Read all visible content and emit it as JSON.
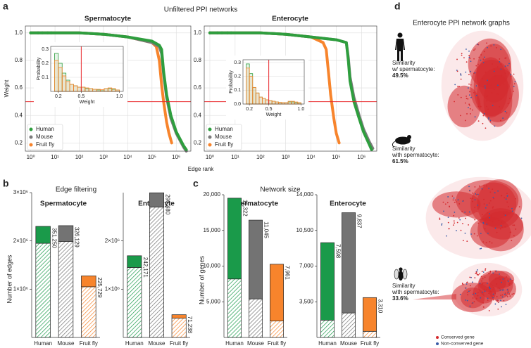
{
  "panels": {
    "a": {
      "letter": "a",
      "title": "Unfiltered PPI networks",
      "xlabel": "Edge rank"
    },
    "b": {
      "letter": "b",
      "title": "Edge filtering"
    },
    "c": {
      "letter": "c",
      "title": "Network size"
    },
    "d": {
      "letter": "d",
      "title": "Enterocyte PPI network graphs",
      "similarity": [
        {
          "lines": [
            "Similarity",
            "w/ spermatocyte:"
          ],
          "value": "49.5%"
        },
        {
          "lines": [
            "Similarity",
            "with spermatocyte:"
          ],
          "value": "61.5%"
        },
        {
          "lines": [
            "Similarity",
            "with spermatocyte:"
          ],
          "value": "33.6%"
        }
      ],
      "legend": [
        {
          "label": "Conserved gene",
          "color": "#d42a2e"
        },
        {
          "label": "Non-conserved gene",
          "color": "#3a5ca8"
        }
      ]
    }
  },
  "chart_data": [
    {
      "type": "line",
      "title": "Spermatocyte",
      "ylabel": "Weight",
      "xscale": "log",
      "grid": true,
      "legend": "lower left",
      "xlim": [
        0.6,
        4000000
      ],
      "ylim": [
        0.14,
        1.05
      ],
      "xticks": [
        {
          "value": 1,
          "label": "10⁰"
        },
        {
          "value": 10,
          "label": "10¹"
        },
        {
          "value": 100,
          "label": "10²"
        },
        {
          "value": 1000,
          "label": "10³"
        },
        {
          "value": 10000,
          "label": "10⁴"
        },
        {
          "value": 100000,
          "label": "10⁵"
        },
        {
          "value": 1000000,
          "label": "10⁶"
        }
      ],
      "yticks": [
        0.2,
        0.4,
        0.6,
        0.8,
        {
          "value": 1,
          "label": "1.0"
        }
      ],
      "reference_line": {
        "y": 0.5,
        "color": "#e8262a"
      },
      "series": [
        {
          "name": "Human",
          "color": "#2e9e3e",
          "x": [
            1,
            2,
            3,
            5,
            7,
            10,
            100,
            1000,
            10000,
            100000,
            200000,
            250000,
            300000,
            400000,
            600000,
            1000000,
            2000000,
            2600000
          ],
          "values": [
            1,
            1,
            1,
            1,
            1,
            1,
            1,
            0.99,
            0.97,
            0.94,
            0.91,
            0.88,
            0.72,
            0.55,
            0.4,
            0.28,
            0.18,
            0.15
          ]
        },
        {
          "name": "Mouse",
          "color": "#7a7a7a",
          "x": [
            1,
            2,
            3,
            5,
            7,
            10,
            100,
            1000,
            10000,
            100000,
            200000,
            250000,
            300000,
            400000,
            600000,
            1000000,
            2000000,
            2600000
          ],
          "values": [
            1,
            1,
            1,
            1,
            1,
            1,
            1,
            0.99,
            0.97,
            0.93,
            0.9,
            0.85,
            0.7,
            0.53,
            0.38,
            0.27,
            0.17,
            0.14
          ]
        },
        {
          "name": "Fruit fly",
          "color": "#f7842c",
          "x": [
            1,
            2,
            3,
            5,
            7,
            10,
            100,
            1000,
            10000,
            100000,
            150000,
            200000,
            250000,
            300000,
            400000,
            500000,
            650000
          ],
          "values": [
            1,
            1,
            1,
            1,
            1,
            1,
            1,
            0.99,
            0.97,
            0.93,
            0.9,
            0.8,
            0.62,
            0.5,
            0.35,
            0.27,
            0.2
          ]
        }
      ],
      "inset": {
        "type": "histogram",
        "xlabel": "Weight",
        "ylabel": "Probability",
        "xlim": [
          0.1,
          1.05
        ],
        "ylim": [
          0,
          0.32
        ],
        "xticks": [
          0.2,
          0.5,
          {
            "value": 1,
            "label": "1.0"
          }
        ],
        "yticks": [
          0.1,
          0.2,
          0.3
        ],
        "reference_line": {
          "x": 0.5,
          "color": "#e8262a"
        },
        "bins": [
          0.1,
          0.15,
          0.2,
          0.25,
          0.3,
          0.35,
          0.4,
          0.45,
          0.5,
          0.55,
          0.6,
          0.65,
          0.7,
          0.75,
          0.8,
          0.85,
          0.9,
          0.95,
          1.0
        ],
        "series": [
          {
            "color": "#2e9e3e",
            "values": [
              0,
              0.27,
              0.2,
              0.13,
              0.08,
              0.05,
              0.04,
              0.03,
              0.03,
              0.02,
              0.02,
              0.015,
              0.01,
              0.01,
              0.02,
              0.02,
              0.015,
              0.01
            ]
          },
          {
            "color": "#f7842c",
            "values": [
              0,
              0.22,
              0.17,
              0.11,
              0.07,
              0.05,
              0.04,
              0.03,
              0.03,
              0.025,
              0.02,
              0.015,
              0.015,
              0.012,
              0.02,
              0.025,
              0.02,
              0.01
            ]
          }
        ]
      }
    },
    {
      "type": "line",
      "title": "Enterocyte",
      "xscale": "log",
      "grid": true,
      "legend": "lower left",
      "xlim": [
        0.6,
        4000000
      ],
      "ylim": [
        0.14,
        1.05
      ],
      "xticks": [
        {
          "value": 1,
          "label": "10⁰"
        },
        {
          "value": 10,
          "label": "10¹"
        },
        {
          "value": 100,
          "label": "10²"
        },
        {
          "value": 1000,
          "label": "10³"
        },
        {
          "value": 10000,
          "label": "10⁴"
        },
        {
          "value": 100000,
          "label": "10⁵"
        },
        {
          "value": 1000000,
          "label": "10⁶"
        }
      ],
      "yticks": [
        0.2,
        0.4,
        0.6,
        0.8,
        {
          "value": 1,
          "label": "1.0"
        }
      ],
      "reference_line": {
        "y": 0.5,
        "color": "#e8262a"
      },
      "series": [
        {
          "name": "Human",
          "color": "#2e9e3e",
          "x": [
            1,
            2,
            3,
            5,
            7,
            10,
            100,
            1000,
            10000,
            100000,
            250000,
            300000,
            350000,
            500000,
            800000,
            1200000,
            2000000,
            2500000
          ],
          "values": [
            1,
            1,
            1,
            1,
            1,
            1,
            1,
            0.99,
            0.97,
            0.95,
            0.93,
            0.8,
            0.65,
            0.5,
            0.38,
            0.28,
            0.19,
            0.15
          ]
        },
        {
          "name": "Mouse",
          "color": "#7a7a7a",
          "x": [
            1,
            2,
            3,
            5,
            7,
            10,
            100,
            1000,
            10000,
            100000,
            250000,
            300000,
            350000,
            500000,
            800000,
            1200000,
            2000000,
            2800000
          ],
          "values": [
            1,
            1,
            1,
            1,
            1,
            1,
            1,
            0.99,
            0.97,
            0.95,
            0.93,
            0.82,
            0.68,
            0.53,
            0.4,
            0.3,
            0.21,
            0.16
          ]
        },
        {
          "name": "Fruit fly",
          "color": "#f7842c",
          "x": [
            1,
            2,
            3,
            5,
            7,
            10,
            100,
            1000,
            10000,
            30000,
            40000,
            50000,
            60000,
            80000,
            100000,
            130000
          ],
          "values": [
            1,
            1,
            1,
            1,
            1,
            1,
            1,
            0.99,
            0.97,
            0.93,
            0.88,
            0.7,
            0.55,
            0.38,
            0.27,
            0.2
          ]
        }
      ],
      "inset": {
        "type": "histogram",
        "xlabel": "Weight",
        "ylabel": "Probability",
        "xlim": [
          0.1,
          1.05
        ],
        "ylim": [
          0,
          0.32
        ],
        "xticks": [
          0.2,
          0.5,
          {
            "value": 1,
            "label": "1.0"
          }
        ],
        "yticks": [
          {
            "value": 0,
            "label": "0.0"
          },
          0.1,
          0.2,
          0.3
        ],
        "reference_line": {
          "x": 0.5,
          "color": "#e8262a"
        },
        "bins": [
          0.1,
          0.15,
          0.2,
          0.25,
          0.3,
          0.35,
          0.4,
          0.45,
          0.5,
          0.55,
          0.6,
          0.65,
          0.7,
          0.75,
          0.8,
          0.85,
          0.9,
          0.95,
          1.0
        ],
        "series": [
          {
            "color": "#2e9e3e",
            "values": [
              0,
              0.29,
              0.22,
              0.12,
              0.08,
              0.05,
              0.04,
              0.03,
              0.025,
              0.02,
              0.015,
              0.01,
              0.01,
              0.01,
              0.015,
              0.015,
              0.01,
              0.008
            ]
          },
          {
            "color": "#f7842c",
            "values": [
              0,
              0.26,
              0.2,
              0.12,
              0.08,
              0.05,
              0.04,
              0.03,
              0.025,
              0.02,
              0.015,
              0.012,
              0.01,
              0.01,
              0.02,
              0.02,
              0.015,
              0.01
            ]
          }
        ]
      }
    },
    {
      "type": "bar",
      "stacked": true,
      "title": "Spermatocyte",
      "ylabel": "Number of edges",
      "categories": [
        "Human",
        "Mouse",
        "Fruit fly"
      ],
      "colors": [
        "#1a9a4a",
        "#737373",
        "#f7842c"
      ],
      "ylim": [
        0,
        3000000
      ],
      "yticks": [
        {
          "value": 1000000,
          "label": "1×10⁶"
        },
        {
          "value": 2000000,
          "label": "2×10⁶"
        },
        {
          "value": 3000000,
          "label": "3×10⁶"
        }
      ],
      "series": [
        {
          "hatch": true,
          "values": [
            1950000,
            1990000,
            1050000
          ]
        },
        {
          "values": [
            351250,
            326129,
            225729
          ],
          "value_labels": [
            "351,250",
            "326,129",
            "225,729"
          ]
        }
      ]
    },
    {
      "type": "bar",
      "stacked": true,
      "title": "Enterocyte",
      "categories": [
        "Human",
        "Mouse",
        "Fruit fly"
      ],
      "colors": [
        "#1a9a4a",
        "#737373",
        "#f7842c"
      ],
      "ylim": [
        0,
        3000000
      ],
      "yticks": [
        {
          "value": 1000000,
          "label": "1×10⁶"
        },
        {
          "value": 2000000,
          "label": "2×10⁶"
        }
      ],
      "series": [
        {
          "hatch": true,
          "values": [
            1450000,
            2700000,
            400000
          ]
        },
        {
          "values": [
            242171,
            296480,
            71238
          ],
          "value_labels": [
            "242,171",
            "296,480",
            "71,238"
          ]
        }
      ]
    },
    {
      "type": "bar",
      "stacked": true,
      "title": "Spermatocyte",
      "ylabel": "Number of genes",
      "categories": [
        "Human",
        "Mouse",
        "Fruit fly"
      ],
      "colors": [
        "#1a9a4a",
        "#737373",
        "#f7842c"
      ],
      "ylim": [
        0,
        20000
      ],
      "yticks": [
        {
          "value": 5000,
          "label": "5,000"
        },
        {
          "value": 10000,
          "label": "10,000"
        },
        {
          "value": 15000,
          "label": "15,000"
        },
        {
          "value": 20000,
          "label": "20,000"
        }
      ],
      "series": [
        {
          "hatch": true,
          "values": [
            8200,
            5400,
            2300
          ]
        },
        {
          "values": [
            11322,
            11045,
            7961
          ],
          "value_labels": [
            "11,322",
            "11,045",
            "7,961"
          ]
        }
      ]
    },
    {
      "type": "bar",
      "stacked": true,
      "title": "Enterocyte",
      "categories": [
        "Human",
        "Mouse",
        "Fruit fly"
      ],
      "colors": [
        "#1a9a4a",
        "#737373",
        "#f7842c"
      ],
      "ylim": [
        0,
        14000
      ],
      "yticks": [
        {
          "value": 3500,
          "label": "3,500"
        },
        {
          "value": 7000,
          "label": "7,000"
        },
        {
          "value": 10500,
          "label": "10,500"
        },
        {
          "value": 14000,
          "label": "14,000"
        }
      ],
      "series": [
        {
          "hatch": true,
          "values": [
            1700,
            2400,
            600
          ]
        },
        {
          "values": [
            7598,
            9837,
            3310
          ],
          "value_labels": [
            "7,598",
            "9,837",
            "3,310"
          ]
        }
      ]
    }
  ]
}
